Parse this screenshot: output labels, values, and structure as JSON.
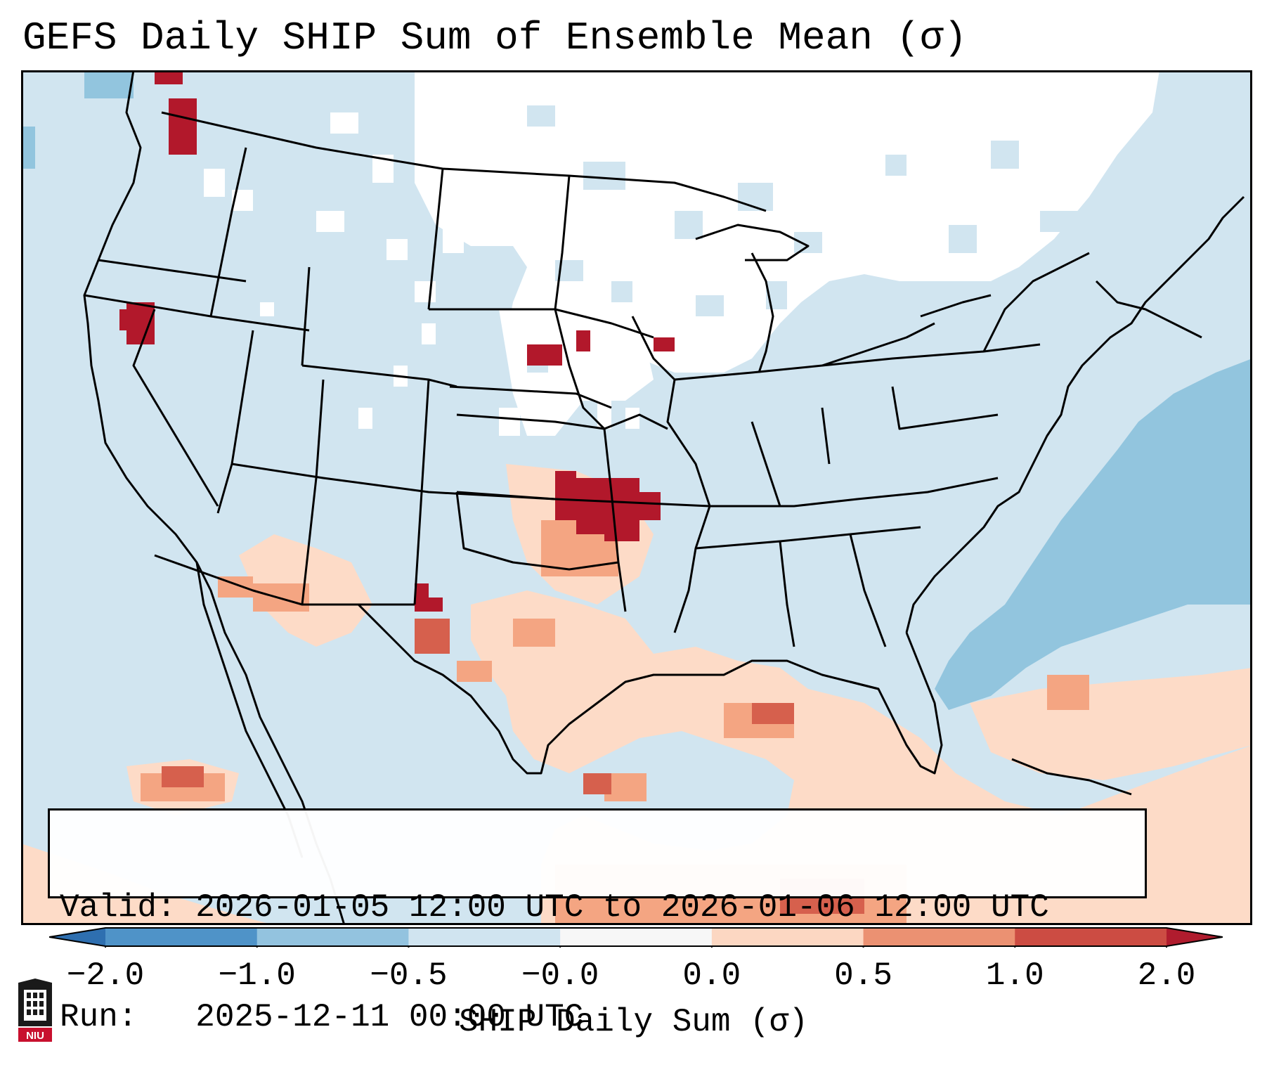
{
  "title": "GEFS Daily SHIP Sum of Ensemble Mean (σ)",
  "info": {
    "valid_line": "Valid: 2026-01-05 12:00 UTC to 2026-01-06 12:00 UTC",
    "run_line": "Run:   2025-12-11 00:00 UTC"
  },
  "colorbar": {
    "label": "SHIP Daily Sum (σ)",
    "ticks": [
      "−2.0",
      "−1.0",
      "−0.5",
      "−0.0",
      "0.0",
      "0.5",
      "1.0",
      "2.0"
    ],
    "colors": [
      "#2e6fb0",
      "#4f93c8",
      "#93c3df",
      "#d0e4f0",
      "#f7f7f7",
      "#fcd7c2",
      "#eb9172",
      "#cc4c43",
      "#b01c2e"
    ]
  },
  "logo": {
    "text": "NIU"
  },
  "legend_colors": {
    "weak_negative": "#d1e5f0",
    "moderate_negative": "#92c5de",
    "neutral": "#ffffff",
    "weak_positive": "#fddbc7",
    "moderate_positive": "#f4a582",
    "strong_positive": "#d6604d",
    "extreme_positive": "#b2182b"
  }
}
